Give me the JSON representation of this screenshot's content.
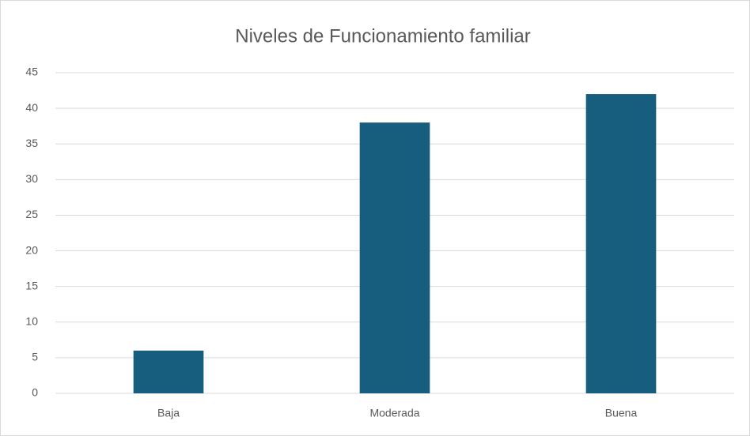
{
  "chart_data": {
    "type": "bar",
    "title": "Niveles de Funcionamiento familiar",
    "categories": [
      "Baja",
      "Moderada",
      "Buena"
    ],
    "values": [
      6,
      38,
      42
    ],
    "color": "#175e7e",
    "ylim": [
      0,
      45
    ],
    "yticks": [
      0,
      5,
      10,
      15,
      20,
      25,
      30,
      35,
      40,
      45
    ],
    "grid": true
  }
}
